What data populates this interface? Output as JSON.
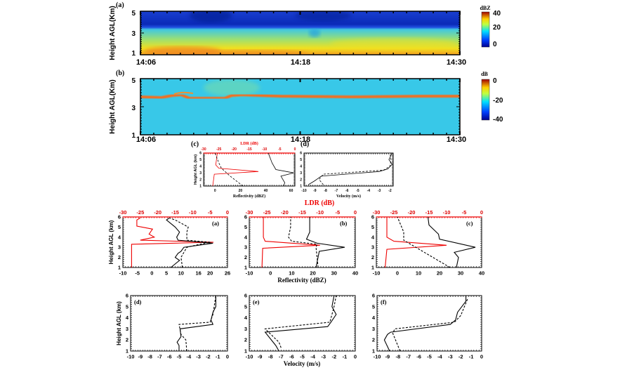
{
  "chart_data": [
    {
      "type": "heatmap",
      "panel_label": "(a)",
      "ylabel": "Height AGL(Km)",
      "yticks": [
        "1",
        "3",
        "5"
      ],
      "xticks": [
        "14:06",
        "14:18",
        "14:30"
      ],
      "colorbar": {
        "unit": "dBZ",
        "ticks": [
          "40",
          "20",
          "0"
        ],
        "range": [
          -10,
          40
        ]
      }
    },
    {
      "type": "heatmap",
      "panel_label": "(b)",
      "ylabel": "Height AGL(Km)",
      "yticks": [
        "1",
        "3",
        "5"
      ],
      "xticks": [
        "14:06",
        "14:18",
        "14:30"
      ],
      "colorbar": {
        "unit": "dB",
        "ticks": [
          "0",
          "-20",
          "-40"
        ],
        "range": [
          -40,
          0
        ]
      }
    },
    {
      "type": "line",
      "id": "sc",
      "panel_label": "(c)",
      "ylabel": "Height AGL (km)",
      "xlabel": "Reflectivity (dBZ)",
      "xlim": [
        -9,
        63
      ],
      "xticks": [
        0,
        20,
        40,
        60
      ],
      "top_label": "LDR (dB)",
      "top_lim": [
        -30,
        0
      ],
      "top_ticks": [
        -30,
        -25,
        -20,
        -15,
        -10,
        -5,
        0
      ],
      "ylim": [
        1,
        6
      ],
      "yticks": [
        1,
        2,
        3,
        4,
        5,
        6
      ],
      "series": [
        {
          "name": "LDR",
          "axis": "top",
          "style": "red",
          "points": [
            [
              -27,
              1
            ],
            [
              -26.5,
              2.8
            ],
            [
              -12,
              3.2
            ],
            [
              -25,
              3.7
            ],
            [
              -26,
              4.2
            ],
            [
              -25.5,
              6
            ]
          ]
        },
        {
          "name": "Reflectivity solid",
          "style": "solid",
          "points": [
            [
              54,
              1
            ],
            [
              55,
              1.5
            ],
            [
              52,
              2.5
            ],
            [
              62,
              3
            ],
            [
              48,
              3.5
            ],
            [
              45,
              4.5
            ],
            [
              42,
              6
            ]
          ]
        },
        {
          "name": "Reflectivity dashed",
          "style": "dashed",
          "points": [
            [
              22,
              1
            ],
            [
              12,
              2.5
            ],
            [
              5,
              3.7
            ],
            [
              3,
              4.5
            ],
            [
              0,
              6
            ]
          ]
        }
      ]
    },
    {
      "type": "line",
      "id": "sd",
      "panel_label": "(d)",
      "ylabel": "",
      "xlabel": "Velocity (m/s)",
      "xlim": [
        -10,
        -1.7
      ],
      "xticks": [
        -10,
        -9,
        -8,
        -7,
        -6,
        -5,
        -4,
        -3,
        -2
      ],
      "ylim": [
        1,
        6
      ],
      "yticks": [
        1,
        2,
        3,
        4,
        5,
        6
      ],
      "series": [
        {
          "name": "Velocity solid",
          "style": "solid",
          "points": [
            [
              -9.6,
              1.2
            ],
            [
              -9,
              1.8
            ],
            [
              -8.4,
              2.5
            ],
            [
              -3,
              3.2
            ],
            [
              -2.2,
              3.6
            ],
            [
              -1.8,
              4.3
            ],
            [
              -2.1,
              5
            ],
            [
              -1.8,
              6
            ]
          ]
        },
        {
          "name": "Velocity dashed",
          "style": "dashed",
          "points": [
            [
              -8.2,
              1.2
            ],
            [
              -8.6,
              2
            ],
            [
              -8.2,
              2.8
            ],
            [
              -2.6,
              3.4
            ],
            [
              -2,
              4
            ],
            [
              -1.9,
              5
            ],
            [
              -2,
              6
            ]
          ]
        }
      ]
    },
    {
      "type": "line",
      "id": "A",
      "panel_label": "(a)",
      "ylabel": "Height AGL (km)",
      "xlim": [
        -10,
        26
      ],
      "xticks": [
        -10,
        -5,
        0,
        5,
        10,
        16,
        20,
        26
      ],
      "top_lim": [
        -30,
        0
      ],
      "top_ticks": [
        -30,
        -25,
        -20,
        -15,
        -10,
        -5,
        0
      ],
      "ylim": [
        1,
        6
      ],
      "yticks": [
        1,
        2,
        3,
        4,
        5,
        6
      ],
      "series": [
        {
          "name": "LDR",
          "axis": "top",
          "style": "red",
          "points": [
            [
              -27.5,
              1
            ],
            [
              -27.5,
              3.3
            ],
            [
              -4,
              3.5
            ],
            [
              -25,
              3.7
            ],
            [
              -21,
              4.0
            ],
            [
              -22.5,
              4.3
            ],
            [
              -21.5,
              4.8
            ],
            [
              -26,
              5.1
            ],
            [
              -26,
              5.7
            ],
            [
              -25,
              5.9
            ]
          ]
        },
        {
          "name": "Reflectivity solid",
          "style": "solid",
          "points": [
            [
              6.5,
              1
            ],
            [
              9.5,
              1.7
            ],
            [
              8,
              2
            ],
            [
              9,
              2.4
            ],
            [
              10,
              2.6
            ],
            [
              11,
              3
            ],
            [
              21,
              3.4
            ],
            [
              9,
              3.7
            ],
            [
              8.5,
              4
            ],
            [
              9.5,
              4.5
            ],
            [
              8,
              5
            ],
            [
              5,
              5.7
            ],
            [
              6,
              5.9
            ]
          ]
        },
        {
          "name": "Reflectivity dashed",
          "style": "dashed",
          "points": [
            [
              10.5,
              1
            ],
            [
              10,
              2
            ],
            [
              12,
              3
            ],
            [
              15,
              3.2
            ],
            [
              20,
              3.5
            ],
            [
              12,
              3.7
            ],
            [
              12,
              4.5
            ],
            [
              12.5,
              5
            ],
            [
              8,
              5.7
            ],
            [
              6,
              5.9
            ]
          ]
        }
      ]
    },
    {
      "type": "line",
      "id": "B",
      "panel_label": "(b)",
      "xlabel": "Reflectivity (dBZ)",
      "top_label": "LDR (dB)",
      "xlim": [
        -10,
        40
      ],
      "xticks": [
        -10,
        0,
        10,
        20,
        30,
        40
      ],
      "top_lim": [
        -30,
        0
      ],
      "top_ticks": [
        -30,
        -25,
        -20,
        -15,
        -10,
        -5,
        0
      ],
      "ylim": [
        1,
        6
      ],
      "yticks": [
        1,
        2,
        3,
        4,
        5,
        6
      ],
      "series": [
        {
          "name": "LDR",
          "axis": "top",
          "style": "red",
          "points": [
            [
              -26.4,
              1
            ],
            [
              -26.2,
              2.9
            ],
            [
              -10,
              3.2
            ],
            [
              -25.5,
              3.6
            ],
            [
              -26,
              4
            ],
            [
              -26,
              6
            ]
          ]
        },
        {
          "name": "Reflectivity solid",
          "style": "solid",
          "points": [
            [
              21.5,
              1
            ],
            [
              23,
              2.6
            ],
            [
              35,
              3
            ],
            [
              22,
              3.4
            ],
            [
              17,
              3.8
            ],
            [
              18.5,
              4.5
            ],
            [
              18.5,
              6
            ]
          ]
        },
        {
          "name": "Reflectivity dashed",
          "style": "dashed",
          "points": [
            [
              22.5,
              1
            ],
            [
              21.5,
              3
            ],
            [
              22,
              3.3
            ],
            [
              10,
              3.6
            ],
            [
              8.5,
              4
            ],
            [
              9.5,
              5
            ],
            [
              9.5,
              6
            ]
          ]
        }
      ]
    },
    {
      "type": "line",
      "id": "C",
      "panel_label": "(c)",
      "xlim": [
        -10,
        40
      ],
      "xticks": [
        -10,
        0,
        10,
        20,
        30,
        40
      ],
      "top_lim": [
        -30,
        0
      ],
      "top_ticks": [
        -30,
        -25,
        -20,
        -15,
        -10,
        -5,
        0
      ],
      "ylim": [
        1,
        6
      ],
      "yticks": [
        1,
        2,
        3,
        4,
        5,
        6
      ],
      "series": [
        {
          "name": "LDR",
          "axis": "top",
          "style": "red",
          "points": [
            [
              -27.5,
              1
            ],
            [
              -27,
              2.8
            ],
            [
              -10,
              3.2
            ],
            [
              -25,
              3.6
            ],
            [
              -27,
              4
            ],
            [
              -27,
              6
            ]
          ]
        },
        {
          "name": "Reflectivity solid",
          "style": "solid",
          "points": [
            [
              28,
              1
            ],
            [
              29,
              2
            ],
            [
              27,
              2.5
            ],
            [
              37,
              3
            ],
            [
              20,
              3.8
            ],
            [
              19.5,
              4.3
            ],
            [
              15,
              5.2
            ],
            [
              14.5,
              6
            ]
          ]
        },
        {
          "name": "Reflectivity dashed",
          "style": "dashed",
          "points": [
            [
              25,
              1
            ],
            [
              3,
              3.7
            ],
            [
              3,
              4.5
            ],
            [
              0,
              6
            ]
          ]
        }
      ]
    },
    {
      "type": "line",
      "id": "D",
      "panel_label": "(d)",
      "ylabel": "Height AGL (km)",
      "xlim": [
        -10,
        0
      ],
      "xticks": [
        -10,
        -9,
        -8,
        -7,
        -6,
        -5,
        -4,
        -3,
        -2,
        -1,
        0
      ],
      "ylim": [
        1,
        6
      ],
      "yticks": [
        1,
        2,
        3,
        4,
        5,
        6
      ],
      "series": [
        {
          "name": "Velocity solid",
          "style": "solid",
          "points": [
            [
              -5,
              1
            ],
            [
              -5,
              1.5
            ],
            [
              -5.2,
              1.8
            ],
            [
              -4.8,
              2.3
            ],
            [
              -4.9,
              3
            ],
            [
              -1.5,
              3.4
            ],
            [
              -1.7,
              3.8
            ],
            [
              -1.5,
              4.5
            ],
            [
              -1.2,
              5
            ],
            [
              -1.2,
              6
            ]
          ]
        },
        {
          "name": "Velocity dashed",
          "style": "dashed",
          "points": [
            [
              -4.2,
              1
            ],
            [
              -4.3,
              2
            ],
            [
              -4.8,
              2.5
            ],
            [
              -5,
              3.4
            ],
            [
              -1.8,
              3.6
            ],
            [
              -1.5,
              4.3
            ],
            [
              -1.2,
              6
            ]
          ]
        }
      ]
    },
    {
      "type": "line",
      "id": "E",
      "panel_label": "(e)",
      "xlabel": "Velocity (m/s)",
      "xlim": [
        -10,
        0
      ],
      "xticks": [
        -10,
        -9,
        -8,
        -7,
        -6,
        -5,
        -4,
        -3,
        -2,
        -1,
        0
      ],
      "ylim": [
        1,
        6
      ],
      "yticks": [
        1,
        2,
        3,
        4,
        5,
        6
      ],
      "series": [
        {
          "name": "Velocity solid",
          "style": "solid",
          "points": [
            [
              -7.2,
              1
            ],
            [
              -7.5,
              1.5
            ],
            [
              -8.5,
              2.7
            ],
            [
              -2.6,
              3.2
            ],
            [
              -2.3,
              3.6
            ],
            [
              -1.8,
              4.3
            ],
            [
              -2.2,
              5
            ],
            [
              -2,
              6
            ]
          ]
        },
        {
          "name": "Velocity dashed",
          "style": "dashed",
          "points": [
            [
              -7,
              1.3
            ],
            [
              -7.2,
              1.8
            ],
            [
              -8.5,
              3
            ],
            [
              -2.4,
              3.6
            ],
            [
              -2,
              5
            ],
            [
              -1.8,
              6
            ]
          ]
        }
      ]
    },
    {
      "type": "line",
      "id": "F",
      "panel_label": "(f)",
      "xlim": [
        -10,
        0
      ],
      "xticks": [
        -10,
        -9,
        -8,
        -7,
        -6,
        -5,
        -4,
        -3,
        -2,
        -1,
        0
      ],
      "ylim": [
        1,
        6
      ],
      "yticks": [
        1,
        2,
        3,
        4,
        5,
        6
      ],
      "series": [
        {
          "name": "Velocity solid",
          "style": "solid",
          "points": [
            [
              -8.8,
              1
            ],
            [
              -9.3,
              2
            ],
            [
              -9,
              2.5
            ],
            [
              -8.7,
              2.7
            ],
            [
              -3,
              3.4
            ],
            [
              -2.5,
              3.8
            ],
            [
              -2.3,
              4.5
            ],
            [
              -1.5,
              5.5
            ],
            [
              -1.5,
              6
            ]
          ]
        },
        {
          "name": "Velocity dashed",
          "style": "dashed",
          "points": [
            [
              -7.8,
              1
            ],
            [
              -8.5,
              2.6
            ],
            [
              -8.3,
              3
            ],
            [
              -2.6,
              3.6
            ],
            [
              -2,
              4.2
            ],
            [
              -1.3,
              5.8
            ]
          ]
        }
      ]
    }
  ]
}
